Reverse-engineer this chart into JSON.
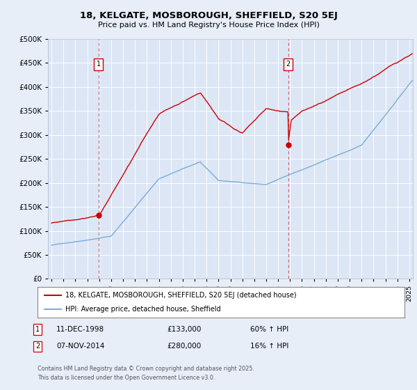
{
  "title": "18, KELGATE, MOSBOROUGH, SHEFFIELD, S20 5EJ",
  "subtitle": "Price paid vs. HM Land Registry's House Price Index (HPI)",
  "bg_color": "#e8eef8",
  "plot_bg_color": "#dce6f5",
  "red_color": "#cc0000",
  "blue_color": "#7aadd4",
  "grid_color": "#ffffff",
  "ylim": [
    0,
    500000
  ],
  "yticks": [
    0,
    50000,
    100000,
    150000,
    200000,
    250000,
    300000,
    350000,
    400000,
    450000,
    500000
  ],
  "xlim_start": 1994.7,
  "xlim_end": 2025.3,
  "transaction1_x": 1998.94,
  "transaction1_price": 133000,
  "transaction2_x": 2014.85,
  "transaction2_price": 280000,
  "legend_line1": "18, KELGATE, MOSBOROUGH, SHEFFIELD, S20 5EJ (detached house)",
  "legend_line2": "HPI: Average price, detached house, Sheffield",
  "annotation1_date": "11-DEC-1998",
  "annotation1_price": "£133,000",
  "annotation1_hpi": "60% ↑ HPI",
  "annotation2_date": "07-NOV-2014",
  "annotation2_price": "£280,000",
  "annotation2_hpi": "16% ↑ HPI",
  "footer": "Contains HM Land Registry data © Crown copyright and database right 2025.\nThis data is licensed under the Open Government Licence v3.0."
}
